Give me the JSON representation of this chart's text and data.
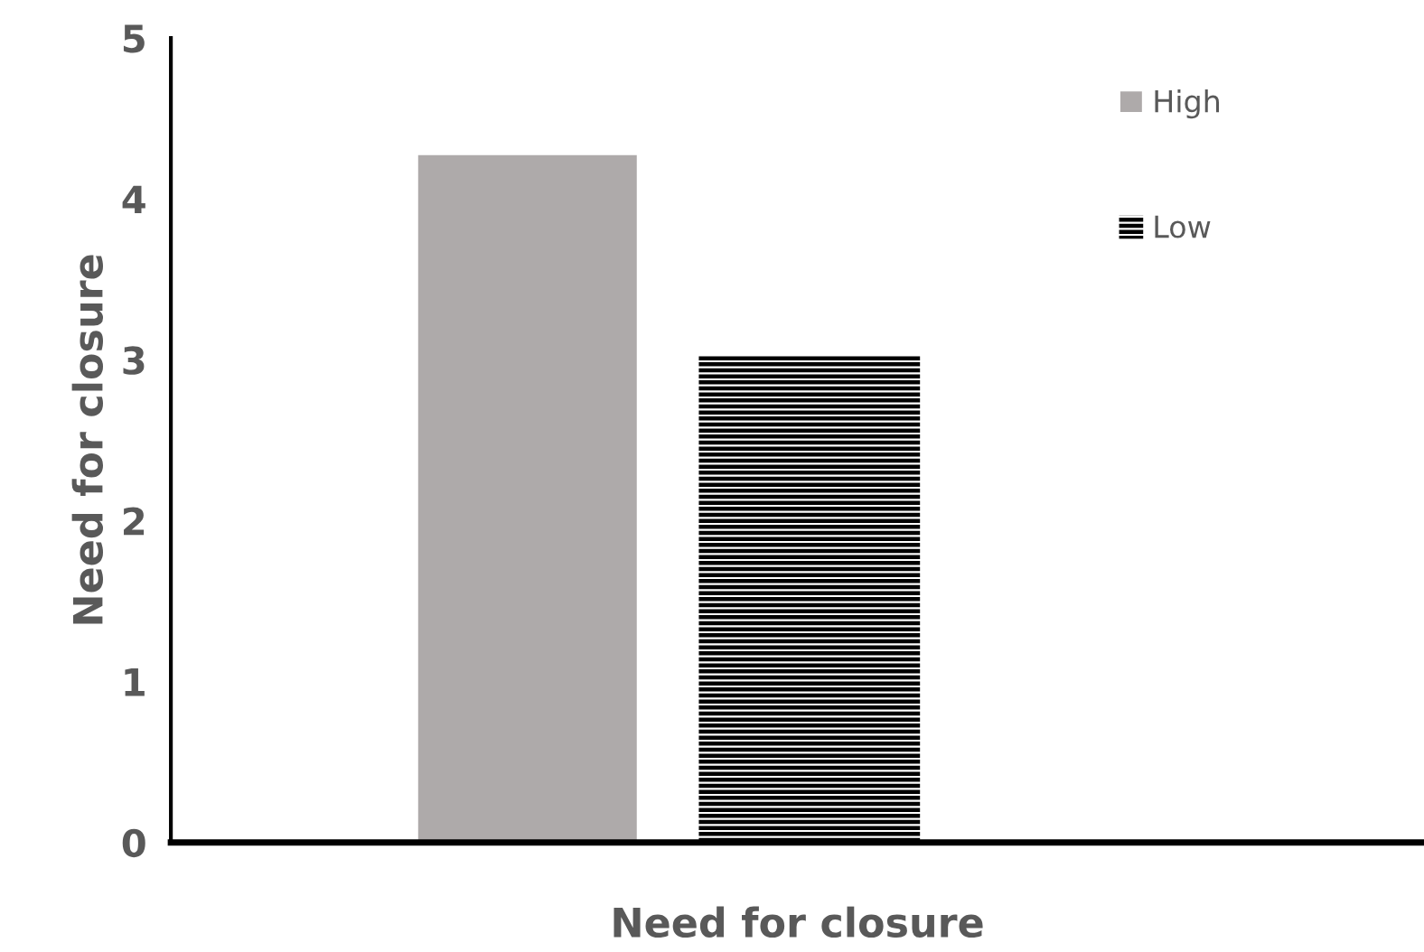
{
  "chart_data": {
    "type": "bar",
    "xlabel": "Need for closure",
    "ylabel": "Need for closure",
    "categories": [
      null
    ],
    "series": [
      {
        "name": "High",
        "color": "#aeaaaa",
        "values": [
          4.28
        ]
      },
      {
        "name": "Low",
        "color": "#000000",
        "values": [
          3.03
        ]
      }
    ],
    "ylim": [
      0,
      5
    ],
    "yticks": [
      0,
      1,
      2,
      3,
      4,
      5
    ],
    "grid": false,
    "legend": "top right"
  }
}
